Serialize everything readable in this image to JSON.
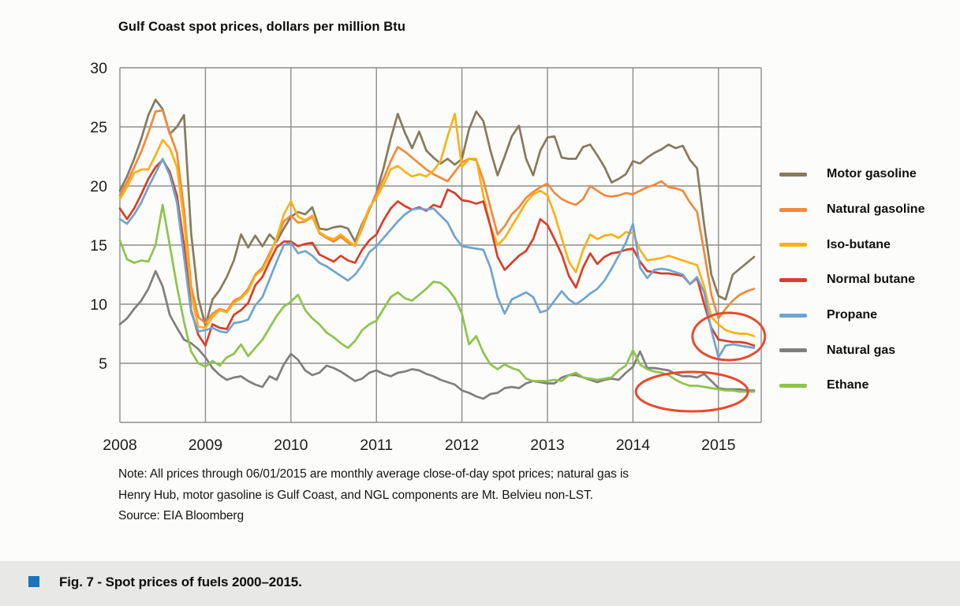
{
  "page": {
    "background": "#fcfcfa",
    "title": "Gulf Coast spot prices, dollars per million Btu",
    "note_line1": "Note: All prices through 06/01/2015 are monthly average close-of-day spot prices; natural gas is",
    "note_line2": "Henry Hub, motor gasoline is Gulf Coast, and NGL components are Mt. Belvieu non-LST.",
    "source": "Source: EIA Bloomberg",
    "figure_caption": "Fig. 7 - Spot prices of fuels 2000–2015.",
    "caption_band_color": "#e8e8e6",
    "caption_marker_color": "#1b75bb"
  },
  "chart_data": {
    "type": "line",
    "title": "Gulf Coast spot prices, dollars per million Btu",
    "ylabel": "dollars per million Btu",
    "ylim": [
      0,
      30
    ],
    "y_ticks": [
      5,
      10,
      15,
      20,
      25,
      30
    ],
    "x_tick_labels": [
      "2008",
      "2009",
      "2010",
      "2011",
      "2012",
      "2013",
      "2014",
      "2015"
    ],
    "x_start": 2008,
    "x_end": 2015.5,
    "points_per_year": 12,
    "grid": true,
    "grid_color": "#8d8d8d",
    "axis_text_color": "#1c1c1c",
    "legend_position": "right",
    "series": [
      {
        "name": "Motor gasoline",
        "color": "#877a5d",
        "values": [
          19.6,
          20.8,
          22.3,
          24.0,
          26.0,
          27.3,
          26.5,
          24.4,
          25.0,
          26.0,
          16.0,
          10.5,
          8.2,
          10.4,
          11.2,
          12.3,
          13.7,
          15.9,
          14.8,
          15.8,
          14.9,
          15.9,
          15.3,
          16.4,
          17.4,
          17.8,
          17.6,
          18.2,
          16.4,
          16.3,
          16.5,
          16.6,
          16.4,
          15.3,
          16.8,
          18.0,
          19.4,
          21.5,
          24.0,
          26.1,
          24.5,
          23.2,
          24.6,
          23.0,
          22.4,
          21.9,
          22.3,
          21.8,
          22.3,
          24.8,
          26.3,
          25.5,
          23.0,
          20.9,
          22.5,
          24.2,
          25.1,
          22.3,
          20.9,
          23.0,
          24.1,
          24.2,
          22.4,
          22.3,
          22.3,
          23.3,
          23.5,
          22.6,
          21.6,
          20.3,
          20.6,
          21.0,
          22.1,
          21.9,
          22.4,
          22.8,
          23.1,
          23.5,
          23.2,
          23.4,
          22.2,
          21.5,
          16.7,
          12.5,
          10.7,
          10.4,
          12.5,
          13.0,
          13.5,
          14.0
        ]
      },
      {
        "name": "Natural gasoline",
        "color": "#f08a3a",
        "values": [
          19.2,
          20.3,
          21.6,
          22.9,
          24.5,
          26.3,
          26.4,
          24.5,
          22.8,
          18.0,
          11.5,
          8.9,
          8.4,
          9.2,
          9.6,
          9.4,
          10.3,
          10.6,
          11.3,
          12.5,
          13.1,
          14.3,
          15.5,
          17.0,
          17.5,
          16.9,
          17.0,
          17.4,
          16.0,
          15.6,
          15.3,
          15.7,
          15.2,
          15.0,
          16.4,
          18.0,
          19.3,
          20.6,
          22.1,
          23.3,
          22.9,
          22.4,
          21.9,
          21.4,
          21.0,
          20.7,
          20.4,
          21.2,
          22.0,
          22.3,
          22.2,
          20.5,
          18.2,
          15.9,
          16.6,
          17.6,
          18.2,
          19.0,
          19.5,
          19.9,
          20.2,
          19.4,
          18.9,
          18.6,
          18.4,
          18.9,
          20.0,
          19.6,
          19.2,
          19.1,
          19.2,
          19.4,
          19.3,
          19.6,
          19.9,
          20.1,
          20.4,
          19.9,
          19.8,
          19.6,
          18.6,
          17.8,
          14.4,
          10.8,
          8.8,
          9.6,
          10.3,
          10.8,
          11.1,
          11.3
        ]
      },
      {
        "name": "Iso-butane",
        "color": "#fbb116",
        "values": [
          18.9,
          19.9,
          21.1,
          21.4,
          21.4,
          22.6,
          23.9,
          23.2,
          21.6,
          17.0,
          10.8,
          8.1,
          8.0,
          8.9,
          9.5,
          9.3,
          10.1,
          10.5,
          11.1,
          12.4,
          12.9,
          14.1,
          15.6,
          17.6,
          18.7,
          17.4,
          17.1,
          17.5,
          16.1,
          15.7,
          15.5,
          15.9,
          15.4,
          14.9,
          16.6,
          18.2,
          19.0,
          20.1,
          21.4,
          21.7,
          21.2,
          20.8,
          21.0,
          20.8,
          21.3,
          22.1,
          24.2,
          26.1,
          21.6,
          22.3,
          22.3,
          19.2,
          16.6,
          15.0,
          15.6,
          16.6,
          17.6,
          18.6,
          19.3,
          19.6,
          19.2,
          17.6,
          15.6,
          13.6,
          12.7,
          14.6,
          15.9,
          15.5,
          15.8,
          15.9,
          15.6,
          16.1,
          16.0,
          14.6,
          13.7,
          13.8,
          13.9,
          14.1,
          13.9,
          13.7,
          13.5,
          13.3,
          11.5,
          8.9,
          8.3,
          7.8,
          7.6,
          7.5,
          7.5,
          7.3
        ]
      },
      {
        "name": "Normal butane",
        "color": "#d93e2a",
        "values": [
          18.1,
          17.2,
          18.1,
          19.3,
          20.6,
          21.6,
          22.2,
          21.2,
          19.2,
          15.0,
          9.5,
          7.4,
          6.5,
          8.3,
          8.0,
          7.9,
          9.1,
          9.5,
          10.1,
          11.6,
          12.3,
          13.6,
          14.8,
          15.3,
          15.3,
          14.9,
          15.1,
          15.2,
          14.2,
          13.9,
          13.6,
          14.1,
          13.7,
          13.5,
          14.6,
          15.4,
          15.9,
          17.1,
          18.1,
          18.7,
          18.3,
          18.0,
          18.2,
          17.9,
          18.4,
          18.2,
          19.7,
          19.4,
          18.8,
          18.7,
          18.5,
          18.7,
          16.6,
          14.0,
          12.9,
          13.5,
          14.1,
          14.5,
          15.5,
          17.2,
          16.7,
          15.5,
          14.2,
          12.4,
          11.4,
          13.1,
          14.3,
          13.4,
          14.0,
          14.3,
          14.4,
          14.6,
          14.7,
          13.6,
          12.8,
          12.7,
          12.6,
          12.6,
          12.5,
          12.4,
          11.7,
          12.2,
          10.0,
          8.0,
          7.0,
          6.9,
          6.8,
          6.8,
          6.7,
          6.5
        ]
      },
      {
        "name": "Propane",
        "color": "#6fa5d1",
        "values": [
          17.2,
          16.8,
          17.6,
          18.6,
          19.9,
          21.1,
          22.3,
          20.9,
          18.6,
          14.0,
          9.3,
          7.7,
          7.8,
          8.0,
          7.7,
          7.6,
          8.4,
          8.5,
          8.7,
          9.9,
          10.6,
          12.1,
          13.6,
          15.0,
          15.2,
          14.3,
          14.5,
          14.1,
          13.5,
          13.2,
          12.8,
          12.4,
          12.0,
          12.5,
          13.3,
          14.4,
          14.9,
          15.6,
          16.3,
          17.0,
          17.6,
          18.0,
          18.1,
          18.0,
          18.1,
          17.5,
          16.9,
          15.7,
          14.9,
          14.8,
          14.7,
          14.6,
          13.1,
          10.6,
          9.2,
          10.4,
          10.7,
          11.0,
          10.6,
          9.3,
          9.5,
          10.3,
          11.1,
          10.4,
          10.0,
          10.4,
          10.9,
          11.3,
          12.0,
          13.0,
          14.1,
          15.2,
          16.8,
          13.1,
          12.2,
          12.9,
          13.0,
          12.9,
          12.7,
          12.5,
          11.7,
          12.3,
          11.0,
          7.8,
          5.5,
          6.5,
          6.6,
          6.5,
          6.4,
          6.3
        ]
      },
      {
        "name": "Natural gas",
        "color": "#7f7f7f",
        "values": [
          8.3,
          8.8,
          9.6,
          10.3,
          11.3,
          12.8,
          11.5,
          9.1,
          8.0,
          7.0,
          6.7,
          6.2,
          5.5,
          4.6,
          4.0,
          3.6,
          3.8,
          3.9,
          3.5,
          3.2,
          3.0,
          3.9,
          3.6,
          4.9,
          5.8,
          5.3,
          4.4,
          4.0,
          4.2,
          4.8,
          4.6,
          4.3,
          3.9,
          3.5,
          3.7,
          4.2,
          4.4,
          4.1,
          3.9,
          4.2,
          4.3,
          4.5,
          4.4,
          4.1,
          3.9,
          3.6,
          3.4,
          3.2,
          2.7,
          2.5,
          2.2,
          2.0,
          2.4,
          2.5,
          2.9,
          3.0,
          2.9,
          3.3,
          3.5,
          3.4,
          3.3,
          3.3,
          3.8,
          4.0,
          4.0,
          3.8,
          3.6,
          3.4,
          3.6,
          3.7,
          3.6,
          4.2,
          4.7,
          6.0,
          4.6,
          4.6,
          4.5,
          4.4,
          4.1,
          3.9,
          3.9,
          3.8,
          4.1,
          3.5,
          2.9,
          2.8,
          2.8,
          2.8,
          2.7,
          2.7
        ]
      },
      {
        "name": "Ethane",
        "color": "#8ec44c",
        "values": [
          15.4,
          13.8,
          13.5,
          13.7,
          13.6,
          15.0,
          18.4,
          15.0,
          11.5,
          8.5,
          6.0,
          5.0,
          4.7,
          5.2,
          4.8,
          5.5,
          5.8,
          6.6,
          5.6,
          6.3,
          7.0,
          8.0,
          9.0,
          9.8,
          10.2,
          10.8,
          9.5,
          8.8,
          8.3,
          7.6,
          7.2,
          6.7,
          6.3,
          6.9,
          7.8,
          8.3,
          8.6,
          9.6,
          10.6,
          11.0,
          10.5,
          10.3,
          10.8,
          11.3,
          11.9,
          11.8,
          11.3,
          10.5,
          9.2,
          6.6,
          7.3,
          5.9,
          4.9,
          4.5,
          4.9,
          4.6,
          4.4,
          3.7,
          3.5,
          3.5,
          3.5,
          3.6,
          3.5,
          4.0,
          4.2,
          3.8,
          3.7,
          3.6,
          3.7,
          3.8,
          4.4,
          4.8,
          6.1,
          4.9,
          4.5,
          4.3,
          4.2,
          4.0,
          3.6,
          3.3,
          3.1,
          3.1,
          3.0,
          2.9,
          2.8,
          2.7,
          2.7,
          2.6,
          2.6,
          2.6
        ]
      }
    ],
    "annotations": {
      "color": "#e8492c",
      "ellipses": [
        {
          "label": "ngl-prices-circle",
          "cx_year": 2015.12,
          "cy_value": 7.27,
          "rx_years": 0.424,
          "ry_value": 2.0
        },
        {
          "label": "gas-ethane-prices-circle",
          "cx_year": 2014.69,
          "cy_value": 2.6,
          "rx_years": 0.655,
          "ry_value": 1.67
        }
      ]
    }
  }
}
